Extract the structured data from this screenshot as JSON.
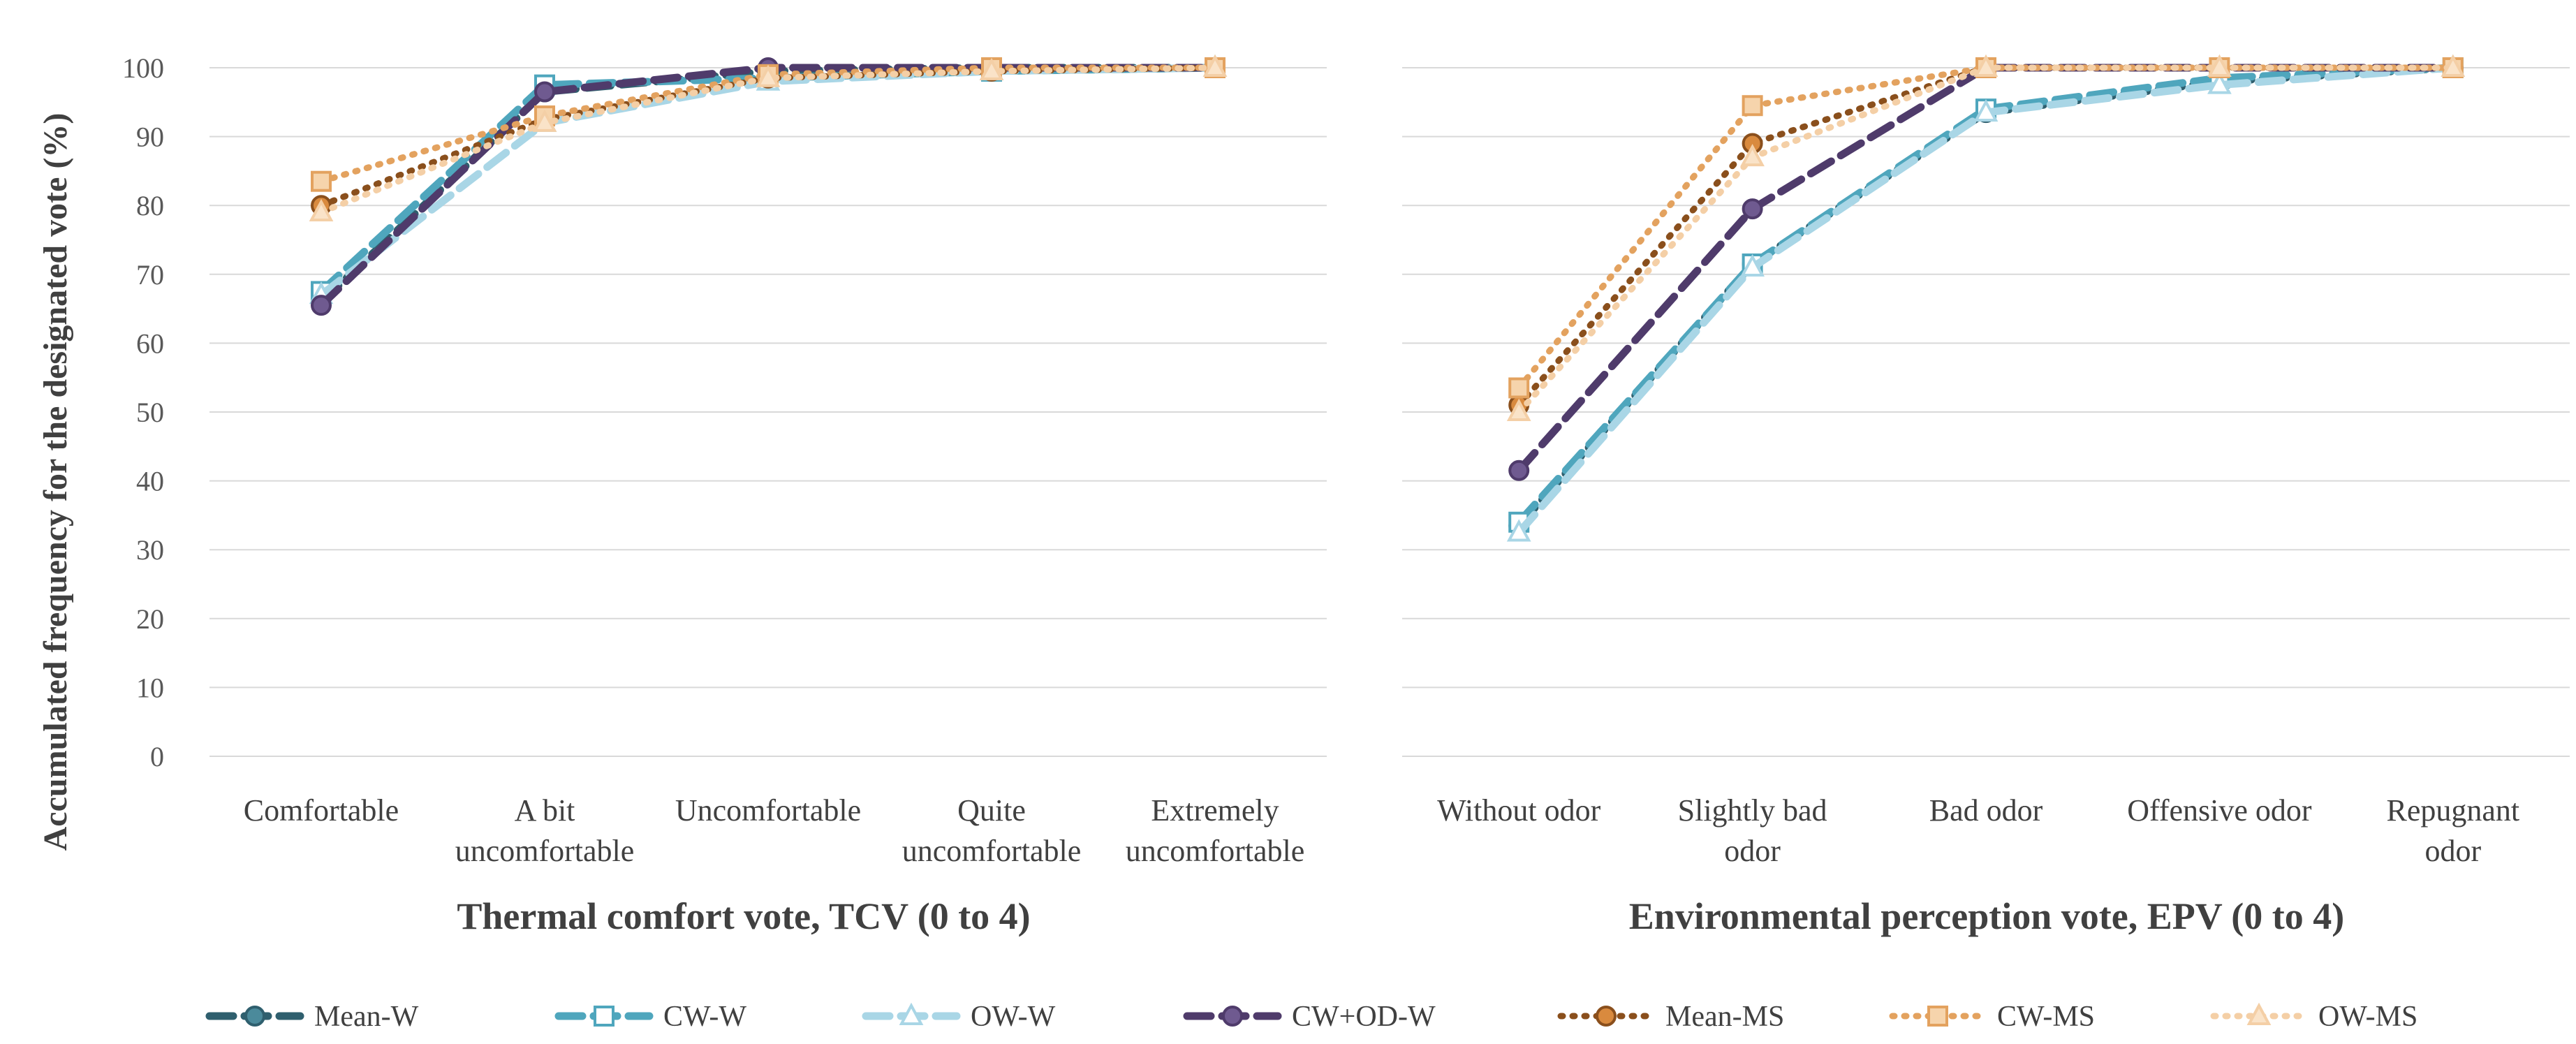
{
  "y_axis": {
    "label": "Accumulated frequency for the designated vote (%)",
    "min": 0,
    "max": 100,
    "step": 10
  },
  "series_styles": {
    "Mean-W": {
      "color": "#2f5f6e",
      "marker_fill": "#4b8a9b",
      "marker": "circle",
      "dash": "34 16",
      "width": 11
    },
    "CW-W": {
      "color": "#4fa6bd",
      "marker_fill": "#ffffff",
      "marker": "square",
      "dash": "34 16",
      "width": 11
    },
    "OW-W": {
      "color": "#a9d6e6",
      "marker_fill": "#ffffff",
      "marker": "triangle",
      "dash": "34 16",
      "width": 11
    },
    "CW+OD-W": {
      "color": "#4f3b6b",
      "marker_fill": "#6f5a90",
      "marker": "circle",
      "dash": "34 16",
      "width": 11
    },
    "Mean-MS": {
      "color": "#8a4f1c",
      "marker_fill": "#d98a3e",
      "marker": "circle",
      "dash": "3 14",
      "width": 9
    },
    "CW-MS": {
      "color": "#e3a25f",
      "marker_fill": "#f6d4ac",
      "marker": "square",
      "dash": "3 14",
      "width": 9
    },
    "OW-MS": {
      "color": "#f4cfa6",
      "marker_fill": "#fae3c8",
      "marker": "triangle",
      "dash": "3 14",
      "width": 9
    }
  },
  "chart_data": [
    {
      "type": "line",
      "title": "",
      "xlabel": "Thermal comfort vote, TCV (0 to 4)",
      "ylabel": "Accumulated frequency for the designated vote (%)",
      "ylim": [
        0,
        100
      ],
      "categories": [
        "Comfortable",
        "A bit uncomfortable",
        "Uncomfortable",
        "Quite uncomfortable",
        "Extremely uncomfortable"
      ],
      "category_lines": [
        [
          "Comfortable"
        ],
        [
          "A bit",
          "uncomfortable"
        ],
        [
          "Uncomfortable"
        ],
        [
          "Quite",
          "uncomfortable"
        ],
        [
          "Extremely",
          "uncomfortable"
        ]
      ],
      "series": [
        {
          "name": "Mean-W",
          "values": [
            66,
            96.5,
            99.5,
            100,
            100
          ]
        },
        {
          "name": "CW-W",
          "values": [
            67.5,
            97.5,
            98.5,
            99.5,
            100
          ]
        },
        {
          "name": "OW-W",
          "values": [
            67,
            92,
            98,
            99.5,
            100
          ]
        },
        {
          "name": "CW+OD-W",
          "values": [
            65.5,
            96.5,
            100,
            100,
            100
          ]
        },
        {
          "name": "Mean-MS",
          "values": [
            80,
            92.5,
            98.5,
            99.5,
            100
          ]
        },
        {
          "name": "CW-MS",
          "values": [
            83.5,
            93,
            99,
            100,
            100
          ]
        },
        {
          "name": "OW-MS",
          "values": [
            79,
            92,
            98.5,
            99.5,
            100
          ]
        }
      ]
    },
    {
      "type": "line",
      "title": "",
      "xlabel": "Environmental perception vote, EPV (0 to 4)",
      "ylabel": "",
      "ylim": [
        0,
        100
      ],
      "categories": [
        "Without odor",
        "Slightly bad odor",
        "Bad odor",
        "Offensive odor",
        "Repugnant odor"
      ],
      "category_lines": [
        [
          "Without odor"
        ],
        [
          "Slightly bad",
          "odor"
        ],
        [
          "Bad odor"
        ],
        [
          "Offensive odor"
        ],
        [
          "Repugnant",
          "odor"
        ]
      ],
      "series": [
        {
          "name": "Mean-W",
          "values": [
            33.5,
            71.5,
            93.5,
            98,
            100
          ]
        },
        {
          "name": "CW-W",
          "values": [
            34,
            71.5,
            94,
            98.5,
            100
          ]
        },
        {
          "name": "OW-W",
          "values": [
            32.5,
            71,
            93.5,
            97.5,
            100
          ]
        },
        {
          "name": "CW+OD-W",
          "values": [
            41.5,
            79.5,
            100,
            100,
            100
          ]
        },
        {
          "name": "Mean-MS",
          "values": [
            51,
            89,
            100,
            100,
            100
          ]
        },
        {
          "name": "CW-MS",
          "values": [
            53.5,
            94.5,
            100,
            100,
            100
          ]
        },
        {
          "name": "OW-MS",
          "values": [
            50,
            87,
            100,
            100,
            100
          ]
        }
      ]
    }
  ],
  "legend": [
    "Mean-W",
    "CW-W",
    "OW-W",
    "CW+OD-W",
    "Mean-MS",
    "CW-MS",
    "OW-MS"
  ]
}
